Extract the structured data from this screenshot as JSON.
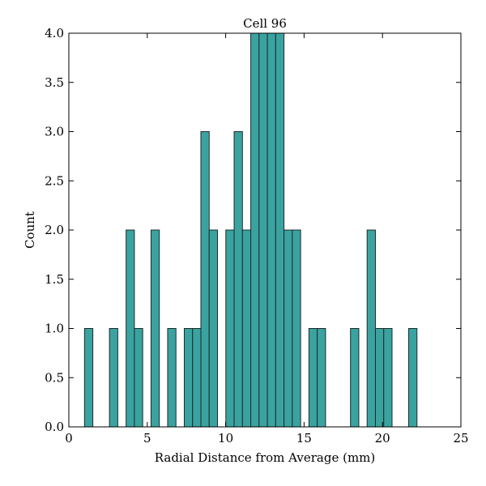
{
  "chart_data": {
    "type": "bar",
    "title": "Cell 96",
    "xlabel": "Radial Distance from Average (mm)",
    "ylabel": "Count",
    "xlim": [
      0,
      25
    ],
    "ylim": [
      0,
      4
    ],
    "xticks": [
      0,
      5,
      10,
      15,
      20,
      25
    ],
    "xtick_labels": [
      "0",
      "5",
      "10",
      "15",
      "20",
      "25"
    ],
    "yticks": [
      0,
      0.5,
      1,
      1.5,
      2,
      2.5,
      3,
      3.5,
      4
    ],
    "ytick_labels": [
      "0.0",
      "0.5",
      "1.0",
      "1.5",
      "2.0",
      "2.5",
      "3.0",
      "3.5",
      "4.0"
    ],
    "grid": false,
    "bar_color": "#3aa3a0",
    "bar_edge_color": "#1f2a2a",
    "bins": [
      {
        "start": 1.0,
        "end": 1.53,
        "count": 1
      },
      {
        "start": 2.59,
        "end": 3.12,
        "count": 1
      },
      {
        "start": 3.65,
        "end": 4.18,
        "count": 2
      },
      {
        "start": 4.18,
        "end": 4.71,
        "count": 1
      },
      {
        "start": 5.24,
        "end": 5.77,
        "count": 2
      },
      {
        "start": 6.3,
        "end": 6.83,
        "count": 1
      },
      {
        "start": 7.36,
        "end": 7.89,
        "count": 1
      },
      {
        "start": 7.89,
        "end": 8.42,
        "count": 1
      },
      {
        "start": 8.42,
        "end": 8.95,
        "count": 3
      },
      {
        "start": 8.95,
        "end": 9.48,
        "count": 2
      },
      {
        "start": 10.01,
        "end": 10.54,
        "count": 2
      },
      {
        "start": 10.54,
        "end": 11.07,
        "count": 3
      },
      {
        "start": 11.07,
        "end": 11.6,
        "count": 2
      },
      {
        "start": 11.6,
        "end": 12.13,
        "count": 4
      },
      {
        "start": 12.13,
        "end": 12.66,
        "count": 4
      },
      {
        "start": 12.66,
        "end": 13.19,
        "count": 4
      },
      {
        "start": 13.19,
        "end": 13.72,
        "count": 4
      },
      {
        "start": 13.72,
        "end": 14.25,
        "count": 2
      },
      {
        "start": 14.25,
        "end": 14.78,
        "count": 2
      },
      {
        "start": 15.31,
        "end": 15.84,
        "count": 1
      },
      {
        "start": 15.84,
        "end": 16.37,
        "count": 1
      },
      {
        "start": 17.96,
        "end": 18.49,
        "count": 1
      },
      {
        "start": 19.02,
        "end": 19.55,
        "count": 2
      },
      {
        "start": 19.55,
        "end": 20.08,
        "count": 1
      },
      {
        "start": 20.08,
        "end": 20.61,
        "count": 1
      },
      {
        "start": 21.67,
        "end": 22.2,
        "count": 1
      }
    ]
  }
}
